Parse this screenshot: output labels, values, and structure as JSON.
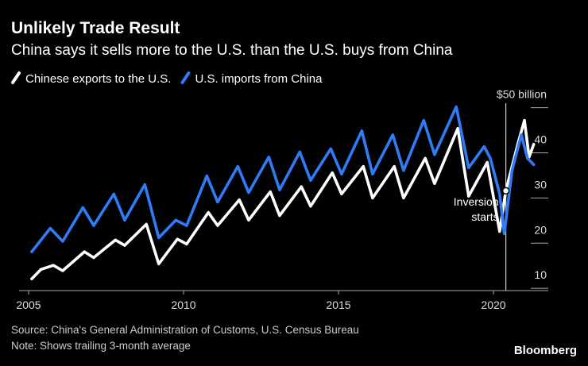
{
  "chart_data": {
    "type": "line",
    "title": "Unlikely Trade Result",
    "subtitle": "China says it sells more to the U.S. than the U.S. buys from China",
    "source": "Source: China's General Administration of Customs, U.S. Census Bureau",
    "note": "Note: Shows trailing 3-month average",
    "brand": "Bloomberg",
    "annotation": {
      "lines": [
        "Inversion",
        "starts"
      ],
      "x": 2020.4
    },
    "xlim": [
      2004.7,
      2021.8
    ],
    "xticks": [
      2005,
      2010,
      2015,
      2020
    ],
    "ylim": [
      9.5,
      51
    ],
    "yticks": [
      {
        "value": 50,
        "label": "$50 billion"
      },
      40,
      30,
      20,
      10
    ],
    "series": [
      {
        "name": "Chinese exports to the U.S.",
        "color": "#ffffff",
        "x": [
          2005.1,
          2005.4,
          2005.8,
          2006.1,
          2006.8,
          2007.1,
          2007.8,
          2008.1,
          2008.8,
          2009.2,
          2009.8,
          2010.1,
          2010.8,
          2011.1,
          2011.8,
          2012.1,
          2012.8,
          2013.1,
          2013.8,
          2014.1,
          2014.8,
          2015.1,
          2015.8,
          2016.1,
          2016.8,
          2017.1,
          2017.8,
          2018.1,
          2018.85,
          2019.2,
          2019.8,
          2020.2,
          2020.4,
          2020.8,
          2021.0,
          2021.15,
          2021.3
        ],
        "values": [
          12.1,
          14.2,
          15.1,
          13.9,
          18.1,
          16.8,
          20.7,
          19.5,
          24.2,
          15.4,
          20.9,
          19.8,
          26.8,
          23.9,
          29.6,
          25.1,
          31.4,
          26.1,
          32.5,
          28.2,
          35.6,
          30.9,
          37.0,
          30.0,
          37.0,
          30.0,
          38.8,
          33.2,
          45.4,
          30.4,
          37.9,
          22.6,
          31.6,
          42.3,
          47.2,
          39.1,
          41.9
        ]
      },
      {
        "name": "U.S. imports from China",
        "color": "#2f7cf6",
        "x": [
          2005.1,
          2005.7,
          2006.1,
          2006.75,
          2007.1,
          2007.75,
          2008.1,
          2008.75,
          2009.2,
          2009.75,
          2010.1,
          2010.75,
          2011.1,
          2011.75,
          2012.1,
          2012.75,
          2013.1,
          2013.75,
          2014.1,
          2014.75,
          2015.1,
          2015.75,
          2016.1,
          2016.75,
          2017.1,
          2017.75,
          2018.1,
          2018.8,
          2019.2,
          2019.7,
          2019.9,
          2020.2,
          2020.35,
          2020.6,
          2020.9,
          2021.1,
          2021.3
        ],
        "values": [
          18.1,
          23.3,
          20.4,
          27.9,
          23.9,
          30.9,
          25.1,
          33.0,
          21.2,
          25.1,
          23.9,
          34.9,
          29.1,
          37.0,
          31.2,
          39.1,
          31.8,
          40.2,
          33.9,
          40.9,
          35.3,
          44.9,
          35.3,
          44.0,
          36.1,
          47.2,
          39.6,
          50.2,
          36.7,
          41.4,
          38.8,
          30.9,
          22.1,
          36.1,
          44.0,
          38.8,
          37.4
        ]
      }
    ]
  }
}
